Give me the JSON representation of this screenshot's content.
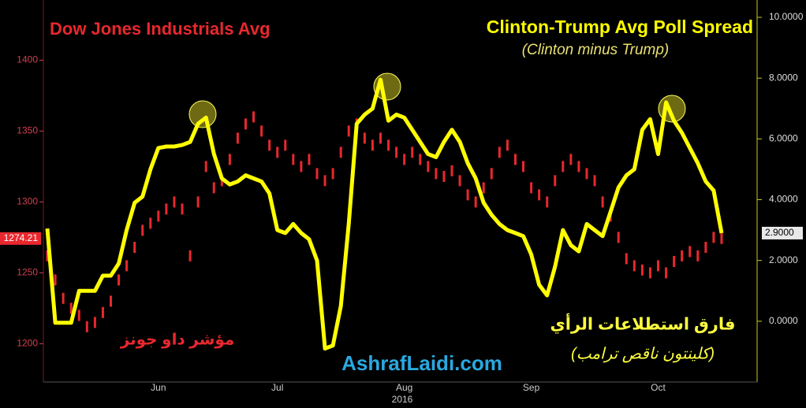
{
  "chart_data": {
    "type": "line",
    "categories": [
      null,
      null,
      null,
      null,
      null,
      null,
      null,
      null,
      null,
      null,
      null,
      null,
      null,
      null,
      "Jun",
      null,
      null,
      null,
      null,
      null,
      null,
      null,
      null,
      null,
      null,
      null,
      null,
      null,
      null,
      "Jul",
      null,
      null,
      null,
      null,
      null,
      null,
      null,
      null,
      null,
      null,
      null,
      null,
      null,
      null,
      null,
      "Aug",
      null,
      null,
      null,
      null,
      null,
      null,
      null,
      null,
      null,
      null,
      null,
      null,
      null,
      null,
      null,
      "Sep",
      null,
      null,
      null,
      null,
      null,
      null,
      null,
      null,
      null,
      null,
      null,
      null,
      null,
      null,
      null,
      "Oct",
      null,
      null,
      null,
      null,
      null,
      null,
      null,
      null
    ],
    "xlabel": "2016",
    "subtitle": "(Clinton minus Trump)",
    "annotations": [
      "مؤشر داو جونز",
      "فارق استطلاعات الرأي",
      "(كلينتون ناقص ترامب)",
      "AshrafLaidi.com"
    ],
    "series": [
      {
        "name": "Dow Jones Industrials Avg",
        "type": "scatter",
        "color": "#e8282e",
        "values": [
          1262,
          1245,
          1232,
          1225,
          1220,
          1212,
          1215,
          1222,
          1230,
          1245,
          1255,
          1268,
          1280,
          1285,
          1290,
          1295,
          1300,
          1295,
          1262,
          1300,
          1325,
          1310,
          1315,
          1330,
          1345,
          1355,
          1360,
          1350,
          1340,
          1335,
          1340,
          1330,
          1325,
          1330,
          1320,
          1315,
          1320,
          1335,
          1350,
          1355,
          1345,
          1340,
          1345,
          1340,
          1335,
          1330,
          1335,
          1330,
          1325,
          1320,
          1318,
          1322,
          1315,
          1305,
          1300,
          1310,
          1320,
          1335,
          1340,
          1330,
          1325,
          1310,
          1305,
          1300,
          1315,
          1325,
          1330,
          1325,
          1320,
          1315,
          1300,
          1290,
          1275,
          1260,
          1255,
          1252,
          1250,
          1255,
          1250,
          1258,
          1262,
          1265,
          1262,
          1268,
          1275,
          1274.21
        ],
        "value_labels": [
          null,
          null,
          null,
          null,
          null,
          null,
          null,
          null,
          null,
          null,
          null,
          null,
          null,
          null,
          null,
          null,
          null,
          null,
          null,
          null,
          null,
          null,
          null,
          null,
          null,
          null,
          null,
          null,
          null,
          null,
          null,
          null,
          null,
          null,
          null,
          null,
          null,
          null,
          null,
          null,
          null,
          null,
          null,
          null,
          null,
          null,
          null,
          null,
          null,
          null,
          null,
          null,
          null,
          null,
          null,
          null,
          null,
          null,
          null,
          null,
          null,
          null,
          null,
          null,
          null,
          null,
          null,
          null,
          null,
          null,
          null,
          null,
          null,
          null,
          null,
          null,
          null,
          null,
          null,
          null,
          null,
          null,
          null,
          null,
          null,
          "1274.21"
        ]
      },
      {
        "name": "Clinton-Trump Avg Poll Spread",
        "type": "line",
        "color": "#ffff00",
        "axis": "y2",
        "values": [
          3.05,
          -0.05,
          -0.05,
          -0.05,
          1.0,
          1.0,
          1.0,
          1.5,
          1.5,
          1.9,
          3.0,
          3.9,
          4.1,
          5.0,
          5.7,
          5.75,
          5.75,
          5.8,
          5.9,
          6.5,
          6.7,
          5.5,
          4.7,
          4.5,
          4.6,
          4.8,
          4.7,
          4.6,
          4.2,
          3.0,
          2.9,
          3.2,
          2.9,
          2.7,
          2.0,
          -0.9,
          -0.8,
          0.5,
          3.2,
          6.5,
          6.8,
          7.0,
          7.95,
          6.6,
          6.8,
          6.7,
          6.3,
          5.9,
          5.5,
          5.4,
          5.9,
          6.3,
          5.9,
          5.2,
          4.7,
          3.9,
          3.5,
          3.2,
          3.0,
          2.9,
          2.8,
          2.2,
          1.2,
          0.85,
          1.8,
          3.0,
          2.5,
          2.3,
          3.2,
          3.0,
          2.8,
          3.6,
          4.4,
          4.8,
          5.0,
          6.3,
          6.65,
          5.5,
          7.2,
          6.6,
          6.2,
          5.7,
          5.2,
          4.6,
          4.3,
          2.9
        ],
        "value_labels": [
          null,
          null,
          null,
          null,
          null,
          null,
          null,
          null,
          null,
          null,
          null,
          null,
          null,
          null,
          null,
          null,
          null,
          null,
          null,
          null,
          null,
          null,
          null,
          null,
          null,
          null,
          null,
          null,
          null,
          null,
          null,
          null,
          null,
          null,
          null,
          null,
          null,
          null,
          null,
          null,
          null,
          null,
          null,
          null,
          null,
          null,
          null,
          null,
          null,
          null,
          null,
          null,
          null,
          null,
          null,
          null,
          null,
          null,
          null,
          null,
          null,
          null,
          null,
          null,
          null,
          null,
          null,
          null,
          null,
          null,
          null,
          null,
          null,
          null,
          null,
          null,
          null,
          null,
          null,
          null,
          null,
          null,
          null,
          null,
          null,
          "2.9000"
        ]
      }
    ],
    "ylim": [
      1173,
      1433
    ],
    "yticks": [
      1200,
      1250,
      1300,
      1350,
      1400
    ],
    "y2lim": [
      -2,
      10.13
    ],
    "y2ticks": [
      {
        "value": 0,
        "label": "0.0000"
      },
      {
        "value": 2,
        "label": "2.0000"
      },
      {
        "value": 4,
        "label": "4.0000"
      },
      {
        "value": 6,
        "label": "6.0000"
      },
      {
        "value": 8,
        "label": "8.0000"
      },
      {
        "value": 10,
        "label": "10.0000"
      }
    ],
    "grid": false
  }
}
